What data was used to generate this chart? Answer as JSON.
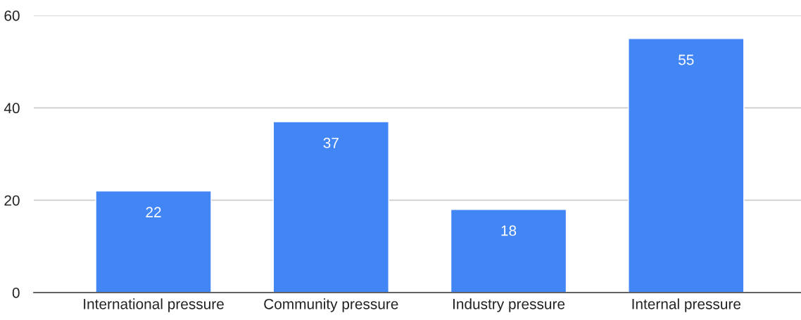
{
  "chart_data": {
    "type": "bar",
    "categories": [
      "International pressure",
      "Community pressure",
      "Industry pressure",
      "Internal pressure"
    ],
    "values": [
      22,
      37,
      18,
      55
    ],
    "color": "#4285f4",
    "ylim": [
      0,
      60
    ],
    "yticks": [
      0,
      20,
      40,
      60
    ],
    "grid": "y",
    "data_labels": true
  }
}
